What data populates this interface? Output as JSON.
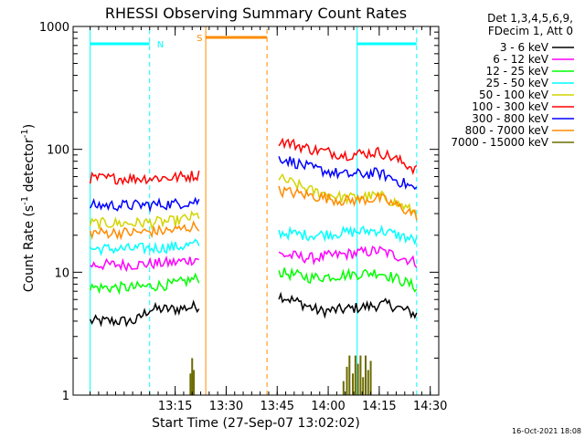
{
  "chart_data": {
    "type": "line",
    "title": "RHESSI Observing Summary Count Rates",
    "xlabel": "Start Time (27-Sep-07 13:02:02)",
    "ylabel_main": "Count Rate (s",
    "ylabel_sup1": "-1",
    "ylabel_mid": " detector",
    "ylabel_sup2": "-1",
    "ylabel_end": ")",
    "yscale": "log",
    "ylim": [
      1,
      1000
    ],
    "xlim_minutes": [
      -2,
      41
    ],
    "x_ticks": [
      {
        "t": 10,
        "label": "13:15"
      },
      {
        "t": 16,
        "label": "13:30"
      },
      {
        "t": 22,
        "label": "13:45"
      },
      {
        "t": 28,
        "label": "14:00"
      },
      {
        "t": 34,
        "label": "14:15"
      },
      {
        "t": 40,
        "label": "14:30"
      }
    ],
    "y_ticks": [
      {
        "v": 1,
        "label": "1"
      },
      {
        "v": 10,
        "label": "10"
      },
      {
        "v": 100,
        "label": "100"
      },
      {
        "v": 1000,
        "label": "1000"
      }
    ],
    "legend_header": [
      "Det 1,3,4,5,6,9,",
      "FDecim 1, Att 0"
    ],
    "series": [
      {
        "name": "3 - 6 keV",
        "color": "#000000",
        "seg1": {
          "x": [
            0,
            5.4,
            7,
            10,
            12.8
          ],
          "y": [
            4,
            4,
            5,
            5,
            5.3
          ]
        },
        "seg2": {
          "x": [
            22.2,
            27,
            30,
            35,
            38.4
          ],
          "y": [
            6.5,
            4.8,
            5,
            5.5,
            4.5
          ]
        }
      },
      {
        "name": "6 - 12 keV",
        "color": "#ff00ff",
        "seg1": {
          "x": [
            0,
            5,
            10,
            12.8
          ],
          "y": [
            11.5,
            11.5,
            12,
            13
          ]
        },
        "seg2": {
          "x": [
            22.2,
            26,
            30,
            34,
            38.4
          ],
          "y": [
            14,
            13,
            14,
            15,
            12
          ]
        }
      },
      {
        "name": "12 - 25 keV",
        "color": "#00ff00",
        "seg1": {
          "x": [
            0,
            5,
            10,
            12.8
          ],
          "y": [
            7.5,
            7.5,
            8,
            9
          ]
        },
        "seg2": {
          "x": [
            22.2,
            26,
            30,
            34,
            38.4
          ],
          "y": [
            10,
            9,
            9.5,
            10,
            7.5
          ]
        }
      },
      {
        "name": "25 - 50 keV",
        "color": "#00ffff",
        "seg1": {
          "x": [
            0,
            5,
            10,
            12.8
          ],
          "y": [
            15.5,
            15.5,
            16,
            17
          ]
        },
        "seg2": {
          "x": [
            22.2,
            26,
            30,
            34,
            38.4
          ],
          "y": [
            21,
            20,
            21,
            22,
            18
          ]
        }
      },
      {
        "name": "50 - 100 keV",
        "color": "#d4d400",
        "seg1": {
          "x": [
            0,
            5,
            10,
            12.8
          ],
          "y": [
            25,
            25,
            26,
            29
          ]
        },
        "seg2": {
          "x": [
            22.2,
            26,
            30,
            34,
            38.4
          ],
          "y": [
            58,
            46,
            40,
            42,
            30
          ]
        }
      },
      {
        "name": "100 - 300 keV",
        "color": "#ff0000",
        "seg1": {
          "x": [
            0,
            5,
            10,
            12.8
          ],
          "y": [
            58,
            58,
            59,
            62
          ]
        },
        "seg2": {
          "x": [
            22.2,
            26,
            30,
            34,
            38.4
          ],
          "y": [
            118,
            100,
            90,
            95,
            68
          ]
        }
      },
      {
        "name": "300 - 800 keV",
        "color": "#0000ff",
        "seg1": {
          "x": [
            0,
            5,
            10,
            12.8
          ],
          "y": [
            35,
            35,
            36,
            38
          ]
        },
        "seg2": {
          "x": [
            22.2,
            26,
            30,
            34,
            38.4
          ],
          "y": [
            86,
            70,
            62,
            64,
            47
          ]
        }
      },
      {
        "name": "800 - 7000 keV",
        "color": "#ff8c00",
        "seg1": {
          "x": [
            0,
            5,
            10,
            12.8
          ],
          "y": [
            21,
            21,
            22,
            24
          ]
        },
        "seg2": {
          "x": [
            22.2,
            26,
            30,
            34,
            38.4
          ],
          "y": [
            46,
            42,
            38,
            40,
            29
          ]
        }
      },
      {
        "name": "7000 - 15000 keV",
        "color": "#6b6b00",
        "seg1": {
          "x": [],
          "y": []
        },
        "seg2": {
          "x": [],
          "y": []
        }
      }
    ],
    "markers": [
      {
        "type": "N",
        "color": "#00ffff",
        "x_start": 0,
        "x_end": 7,
        "label": "N"
      },
      {
        "type": "N",
        "color": "#00ffff",
        "x_start": 31.4,
        "x_end": 38.4,
        "label": ""
      },
      {
        "type": "S",
        "color": "#ff8c00",
        "x_start": 13.6,
        "x_end": 20.8,
        "label": "S"
      }
    ],
    "spikes": [
      {
        "x": 11.8,
        "y": 1.5
      },
      {
        "x": 12.0,
        "y": 2.0
      },
      {
        "x": 12.2,
        "y": 1.6
      },
      {
        "x": 29.8,
        "y": 1.3
      },
      {
        "x": 30.2,
        "y": 1.7
      },
      {
        "x": 30.5,
        "y": 2.1
      },
      {
        "x": 30.9,
        "y": 1.5
      },
      {
        "x": 31.2,
        "y": 2.1
      },
      {
        "x": 31.5,
        "y": 1.8
      },
      {
        "x": 31.8,
        "y": 2.1
      },
      {
        "x": 32.1,
        "y": 1.4
      },
      {
        "x": 32.4,
        "y": 2.1
      },
      {
        "x": 32.7,
        "y": 1.6
      },
      {
        "x": 33.0,
        "y": 1.9
      }
    ]
  },
  "timestamp": "16-Oct-2021 18:08"
}
